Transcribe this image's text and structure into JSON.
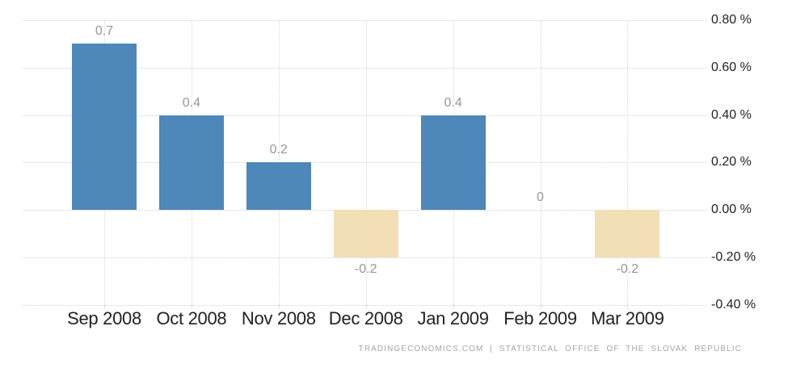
{
  "chart_data": {
    "type": "bar",
    "title": "",
    "xlabel": "",
    "ylabel": "",
    "categories": [
      "Sep 2008",
      "Oct 2008",
      "Nov 2008",
      "Dec 2008",
      "Jan 2009",
      "Feb 2009",
      "Mar 2009"
    ],
    "values": [
      0.7,
      0.4,
      0.2,
      -0.2,
      0.4,
      0,
      -0.2
    ],
    "value_labels": [
      "0.7",
      "0.4",
      "0.2",
      "-0.2",
      "0.4",
      "0",
      "-0.2"
    ],
    "ylim": [
      -0.4,
      0.8
    ],
    "yticks": [
      0.8,
      0.6,
      0.4,
      0.2,
      0.0,
      -0.2,
      -0.4
    ],
    "ytick_labels": [
      "0.80 %",
      "0.60 %",
      "0.40 %",
      "0.20 %",
      "0.00 %",
      "-0.20 %",
      "-0.40 %"
    ],
    "grid": true,
    "legend": false,
    "colors": {
      "bar_positive": "#4e87b9",
      "bar_negative": "#f2dfb5",
      "value_label": "#979797",
      "axis_label": "#222222",
      "gridline": "#d2d2d2"
    }
  },
  "footer": {
    "text": "TRADINGECONOMICS.COM | STATISTICAL OFFICE OF THE SLOVAK REPUBLIC"
  }
}
